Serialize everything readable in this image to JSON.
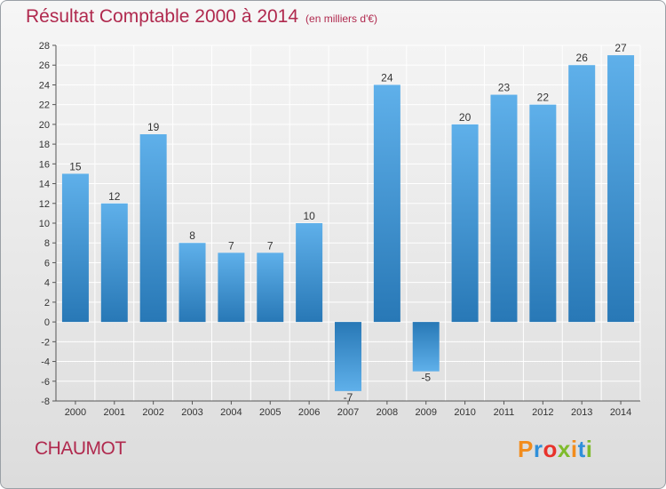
{
  "header": {
    "title": "Résultat Comptable 2000 à 2014",
    "subtitle": "(en milliers d'€)"
  },
  "footer": {
    "commune": "CHAUMOT",
    "logo_text": "Proxiti"
  },
  "colors": {
    "title": "#b0294e",
    "bar_light": "#5fb0ea",
    "bar_dark": "#2878b6",
    "grid": "#ffffff",
    "logo": [
      "#f28c1c",
      "#2f8fd9",
      "#e8322b",
      "#7fbb2c",
      "#f28c1c",
      "#2f8fd9",
      "#7fbb2c"
    ]
  },
  "chart_data": {
    "type": "bar",
    "title": "Résultat Comptable 2000 à 2014",
    "subtitle": "(en milliers d'€)",
    "categories": [
      "2000",
      "2001",
      "2002",
      "2003",
      "2004",
      "2005",
      "2006",
      "2007",
      "2008",
      "2009",
      "2010",
      "2011",
      "2012",
      "2013",
      "2014"
    ],
    "values": [
      15,
      12,
      19,
      8,
      7,
      7,
      10,
      -7,
      24,
      -5,
      20,
      23,
      22,
      26,
      27
    ],
    "ylim": [
      -8,
      28
    ],
    "yticks": [
      -8,
      -6,
      -4,
      -2,
      0,
      2,
      4,
      6,
      8,
      10,
      12,
      14,
      16,
      18,
      20,
      22,
      24,
      26,
      28
    ],
    "grid": true,
    "data_labels": true
  }
}
